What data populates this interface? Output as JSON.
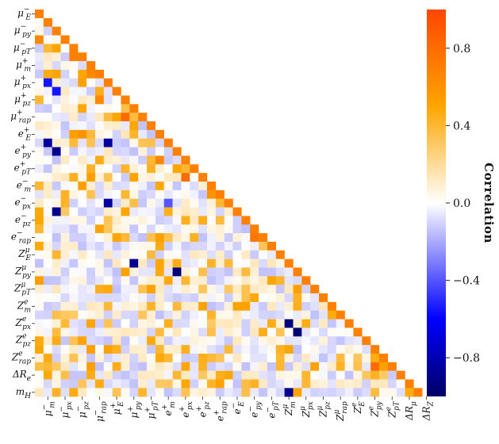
{
  "chart_data": {
    "type": "heatmap",
    "subtype": "lower-triangular correlation matrix",
    "labels": [
      "μ⁻_E",
      "μ⁻_px",
      "μ⁻_py",
      "μ⁻_pz",
      "μ⁻_pT",
      "μ⁻_rap",
      "μ⁺_m",
      "μ⁺_E",
      "μ⁺_px",
      "μ⁺_py",
      "μ⁺_pz",
      "μ⁺_pT",
      "μ⁺_rap",
      "e⁺_m",
      "e⁺_E",
      "e⁺_px",
      "e⁺_py",
      "e⁺_pz",
      "e⁺_pT",
      "e⁺_rap",
      "e⁻_m",
      "e⁻_E",
      "e⁻_px",
      "e⁻_py",
      "e⁻_pz",
      "e⁻_pT",
      "e⁻_rap",
      "Z^μ_m",
      "Z^μ_E",
      "Z^μ_px",
      "Z^μ_py",
      "Z^μ_pz",
      "Z^μ_pT",
      "Z^μ_rap",
      "Z^e_m",
      "Z^e_E",
      "Z^e_px",
      "Z^e_py",
      "Z^e_pz",
      "Z^e_pT",
      "Z^e_rap",
      "ΔR_e",
      "ΔR_μ",
      "ΔR_Z",
      "m_H"
    ],
    "row_labels_shown": [
      {
        "base": "μ",
        "sup": "−",
        "sub": "E"
      },
      {
        "base": "μ",
        "sup": "−",
        "sub": "py"
      },
      {
        "base": "μ",
        "sup": "−",
        "sub": "pT"
      },
      {
        "base": "μ",
        "sup": "+",
        "sub": "m"
      },
      {
        "base": "μ",
        "sup": "+",
        "sub": "px"
      },
      {
        "base": "μ",
        "sup": "+",
        "sub": "pz"
      },
      {
        "base": "μ",
        "sup": "+",
        "sub": "rap"
      },
      {
        "base": "e",
        "sup": "+",
        "sub": "E"
      },
      {
        "base": "e",
        "sup": "+",
        "sub": "py"
      },
      {
        "base": "e",
        "sup": "+",
        "sub": "pT"
      },
      {
        "base": "e",
        "sup": "−",
        "sub": "m"
      },
      {
        "base": "e",
        "sup": "−",
        "sub": "px"
      },
      {
        "base": "e",
        "sup": "−",
        "sub": "pz"
      },
      {
        "base": "e",
        "sup": "−",
        "sub": "rap"
      },
      {
        "base": "Z",
        "sup": "μ",
        "sub": "E"
      },
      {
        "base": "Z",
        "sup": "μ",
        "sub": "py"
      },
      {
        "base": "Z",
        "sup": "μ",
        "sub": "pT"
      },
      {
        "base": "Z",
        "sup": "e",
        "sub": "m"
      },
      {
        "base": "Z",
        "sup": "e",
        "sub": "px"
      },
      {
        "base": "Z",
        "sup": "e",
        "sub": "pz"
      },
      {
        "base": "Z",
        "sup": "e",
        "sub": "rap"
      },
      {
        "base": "ΔR",
        "sup": "",
        "sub": "e"
      },
      {
        "base": "m",
        "sup": "",
        "sub": "H"
      }
    ],
    "col_labels_shown": [
      {
        "base": "μ",
        "sup": "−",
        "sub": "m"
      },
      {
        "base": "μ",
        "sup": "−",
        "sub": "px"
      },
      {
        "base": "μ",
        "sup": "−",
        "sub": "pz"
      },
      {
        "base": "μ",
        "sup": "−",
        "sub": "rap"
      },
      {
        "base": "μ",
        "sup": "+",
        "sub": "E"
      },
      {
        "base": "μ",
        "sup": "+",
        "sub": "py"
      },
      {
        "base": "μ",
        "sup": "+",
        "sub": "pT"
      },
      {
        "base": "e",
        "sup": "+",
        "sub": "m"
      },
      {
        "base": "e",
        "sup": "+",
        "sub": "px"
      },
      {
        "base": "e",
        "sup": "+",
        "sub": "pz"
      },
      {
        "base": "e",
        "sup": "+",
        "sub": "rap"
      },
      {
        "base": "e",
        "sup": "−",
        "sub": "E"
      },
      {
        "base": "e",
        "sup": "−",
        "sub": "py"
      },
      {
        "base": "e",
        "sup": "−",
        "sub": "pT"
      },
      {
        "base": "Z",
        "sup": "μ",
        "sub": "m"
      },
      {
        "base": "Z",
        "sup": "μ",
        "sub": "px"
      },
      {
        "base": "Z",
        "sup": "μ",
        "sub": "pz"
      },
      {
        "base": "Z",
        "sup": "μ",
        "sub": "rap"
      },
      {
        "base": "Z",
        "sup": "e",
        "sub": "E"
      },
      {
        "base": "Z",
        "sup": "e",
        "sub": "py"
      },
      {
        "base": "Z",
        "sup": "e",
        "sub": "pT"
      },
      {
        "base": "ΔR",
        "sup": "",
        "sub": "μ"
      },
      {
        "base": "ΔR",
        "sup": "",
        "sub": "Z"
      }
    ],
    "strong_correlations": [
      {
        "row": "μ⁻_E",
        "col": "μ⁻_m",
        "value": 0.7
      },
      {
        "row": "μ⁻_pz",
        "col": "μ⁻_E",
        "value": 0.65
      },
      {
        "row": "μ⁻_pT",
        "col": "μ⁻_py",
        "value": 0.5
      },
      {
        "row": "μ⁻_rap",
        "col": "μ⁻_pT",
        "value": 0.7
      },
      {
        "row": "μ⁺_E",
        "col": "μ⁺_m",
        "value": 0.65
      },
      {
        "row": "μ⁺_px",
        "col": "μ⁻_px",
        "value": -0.55
      },
      {
        "row": "μ⁺_py",
        "col": "μ⁻_py",
        "value": -0.55
      },
      {
        "row": "μ⁺_pz",
        "col": "μ⁺_E",
        "value": 0.65
      },
      {
        "row": "μ⁺_rap",
        "col": "μ⁺_pz",
        "value": 0.8
      },
      {
        "row": "e⁺_E",
        "col": "μ⁻_rap",
        "value": 0.6
      },
      {
        "row": "e⁺_px",
        "col": "μ⁻_px",
        "value": -0.85
      },
      {
        "row": "e⁺_px",
        "col": "μ⁺_px",
        "value": -0.85
      },
      {
        "row": "e⁺_py",
        "col": "μ⁻_py",
        "value": -0.9
      },
      {
        "row": "e⁺_pz",
        "col": "e⁺_E",
        "value": 0.65
      },
      {
        "row": "e⁺_rap",
        "col": "e⁺_pz",
        "value": 0.8
      },
      {
        "row": "e⁻_E",
        "col": "e⁻_m",
        "value": 0.6
      },
      {
        "row": "e⁻_px",
        "col": "e⁺_px",
        "value": -0.4
      },
      {
        "row": "e⁻_px",
        "col": "μ⁺_px",
        "value": -0.85
      },
      {
        "row": "e⁻_py",
        "col": "μ⁻_py",
        "value": -0.9
      },
      {
        "row": "e⁻_rap",
        "col": "e⁻_pT",
        "value": 0.75
      },
      {
        "row": "Z^μ_px",
        "col": "μ⁺_pT",
        "value": -0.9
      },
      {
        "row": "Z^μ_py",
        "col": "e⁺_py",
        "value": -0.95
      },
      {
        "row": "Z^e_px",
        "col": "Z^μ_px",
        "value": -0.95
      },
      {
        "row": "Z^e_py",
        "col": "Z^μ_py",
        "value": -0.97
      },
      {
        "row": "ΔR_e",
        "col": "Z^e_pT",
        "value": 0.8
      },
      {
        "row": "m_H",
        "col": "Z^μ_px",
        "value": -0.9
      }
    ],
    "colorbar": {
      "label": "Correlation",
      "range": [
        -1,
        1
      ],
      "ticks": [
        "−0.8",
        "−0.4",
        "0.0",
        "0.4",
        "0.8"
      ],
      "tick_values": [
        -0.8,
        -0.4,
        0.0,
        0.4,
        0.8
      ],
      "colormap": [
        {
          "at": -1.0,
          "color": "#000066"
        },
        {
          "at": -0.6,
          "color": "#0000ff"
        },
        {
          "at": 0.0,
          "color": "#ffffff"
        },
        {
          "at": 0.5,
          "color": "#ffa500"
        },
        {
          "at": 1.0,
          "color": "#ff4500"
        }
      ]
    },
    "grid": false,
    "legend_position": "right"
  }
}
